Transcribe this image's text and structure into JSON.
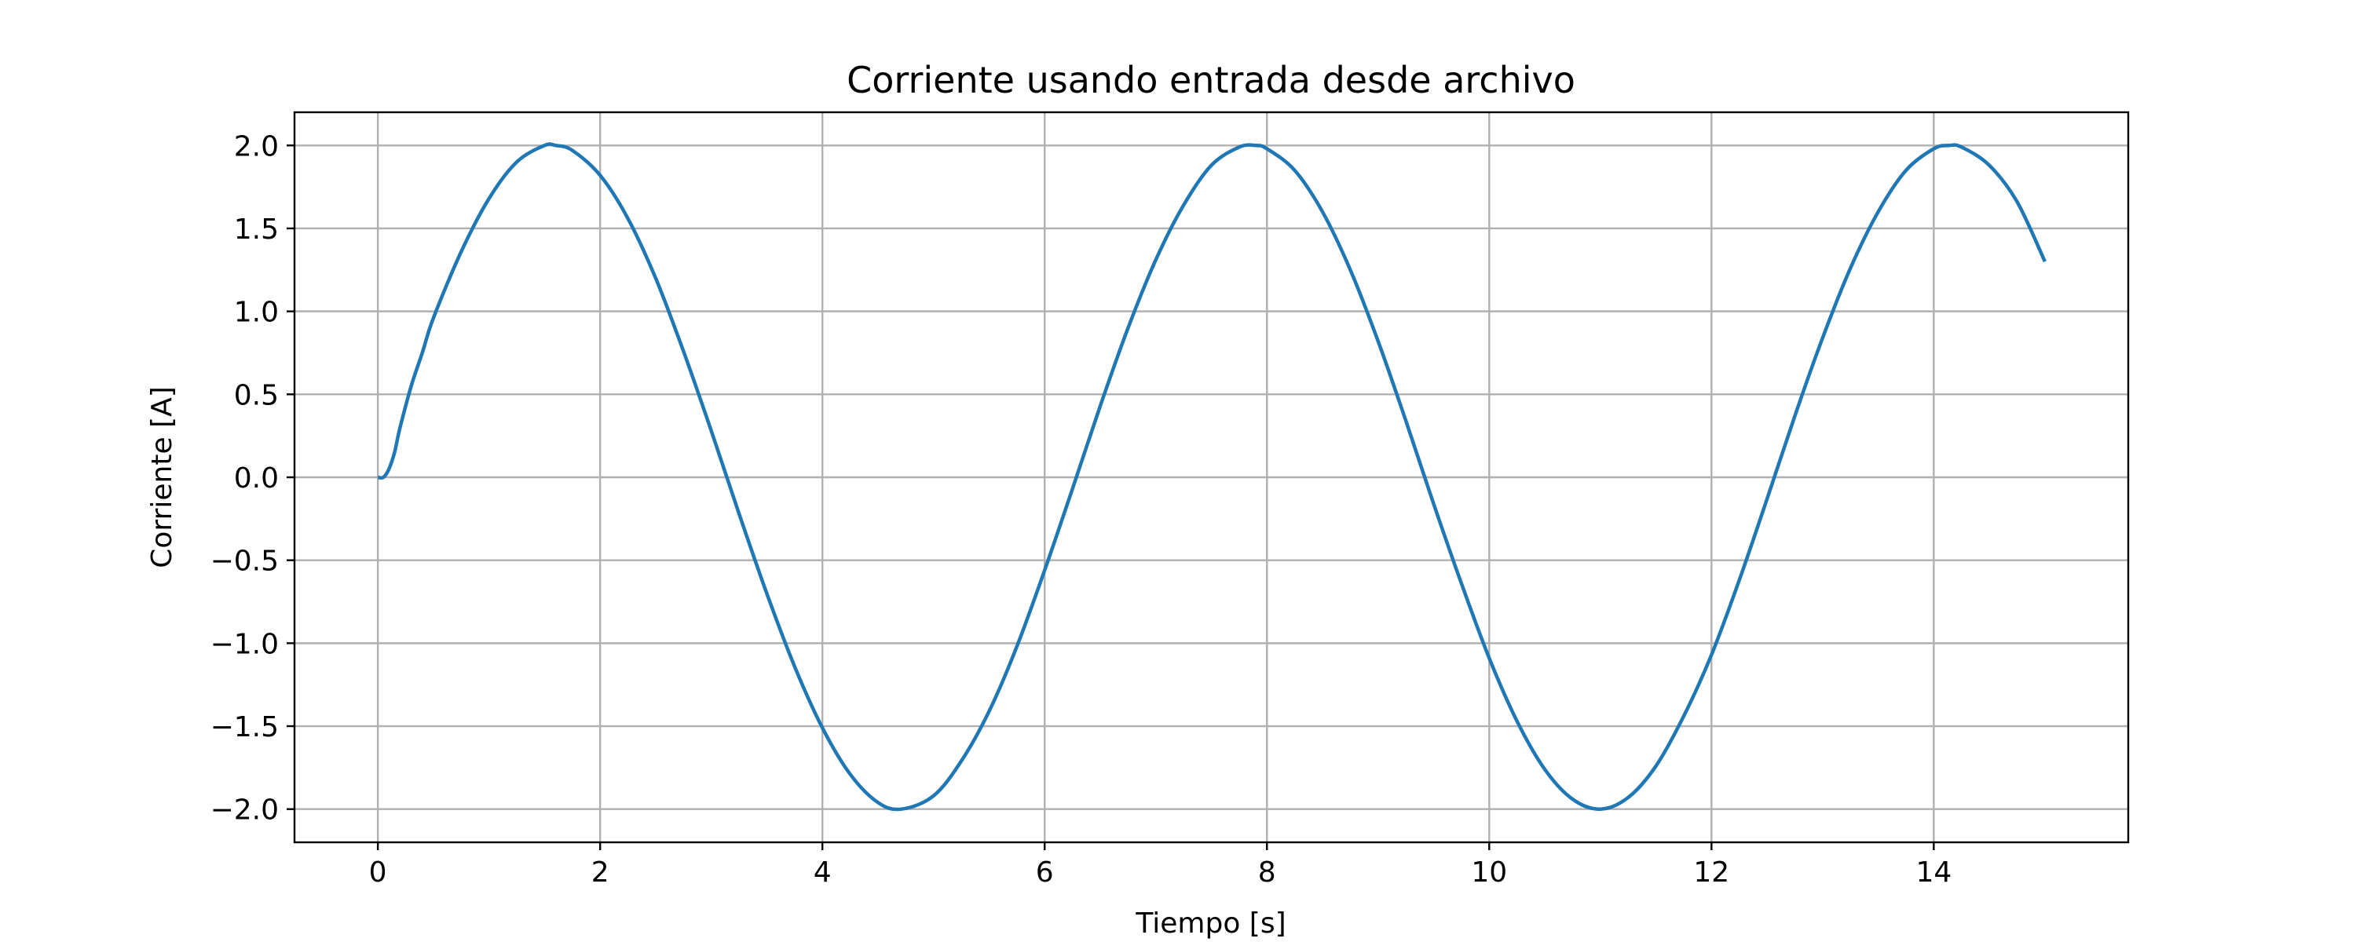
{
  "chart_data": {
    "type": "line",
    "title": "Corriente usando entrada desde archivo",
    "xlabel": "Tiempo [s]",
    "ylabel": "Corriente [A]",
    "xlim": [
      -0.75,
      15.75
    ],
    "ylim": [
      -2.2,
      2.2
    ],
    "xticks": [
      0,
      2,
      4,
      6,
      8,
      10,
      12,
      14
    ],
    "yticks": [
      -2.0,
      -1.5,
      -1.0,
      -0.5,
      0.0,
      0.5,
      1.0,
      1.5,
      2.0
    ],
    "xtick_labels": [
      "0",
      "2",
      "4",
      "6",
      "8",
      "10",
      "12",
      "14"
    ],
    "ytick_labels": [
      "−2.0",
      "−1.5",
      "−1.0",
      "−0.5",
      "0.0",
      "0.5",
      "1.0",
      "1.5",
      "2.0"
    ],
    "grid": true,
    "series": [
      {
        "color": "#1f77b4",
        "x": [
          0,
          0.05,
          0.1,
          0.15,
          0.2,
          0.3,
          0.4,
          0.5,
          0.75,
          1.0,
          1.25,
          1.5,
          1.6,
          1.75,
          2.0,
          2.25,
          2.5,
          2.75,
          3.0,
          3.25,
          3.5,
          3.75,
          4.0,
          4.25,
          4.5,
          4.71,
          5.0,
          5.25,
          5.5,
          5.75,
          6.0,
          6.25,
          6.5,
          6.75,
          7.0,
          7.25,
          7.5,
          7.75,
          7.9,
          8.0,
          8.25,
          8.5,
          8.75,
          9.0,
          9.25,
          9.5,
          9.75,
          10.0,
          10.25,
          10.5,
          10.75,
          11.0,
          11.25,
          11.5,
          11.75,
          12.0,
          12.25,
          12.5,
          12.75,
          13.0,
          13.25,
          13.5,
          13.75,
          14.0,
          14.14,
          14.25,
          14.5,
          14.75,
          15.0
        ],
        "y": [
          0.0,
          0.0,
          0.05,
          0.15,
          0.3,
          0.55,
          0.75,
          0.96,
          1.36,
          1.68,
          1.9,
          2.0,
          2.0,
          1.97,
          1.82,
          1.56,
          1.2,
          0.76,
          0.28,
          -0.22,
          -0.7,
          -1.14,
          -1.51,
          -1.79,
          -1.96,
          -2.0,
          -1.92,
          -1.71,
          -1.41,
          -1.02,
          -0.56,
          -0.07,
          0.43,
          0.9,
          1.31,
          1.64,
          1.88,
          1.99,
          2.0,
          1.98,
          1.85,
          1.6,
          1.25,
          0.82,
          0.34,
          -0.16,
          -0.64,
          -1.09,
          -1.47,
          -1.76,
          -1.94,
          -2.0,
          -1.93,
          -1.74,
          -1.44,
          -1.07,
          -0.62,
          -0.13,
          0.37,
          0.84,
          1.26,
          1.6,
          1.85,
          1.98,
          2.0,
          1.99,
          1.88,
          1.66,
          1.3
        ]
      }
    ]
  }
}
